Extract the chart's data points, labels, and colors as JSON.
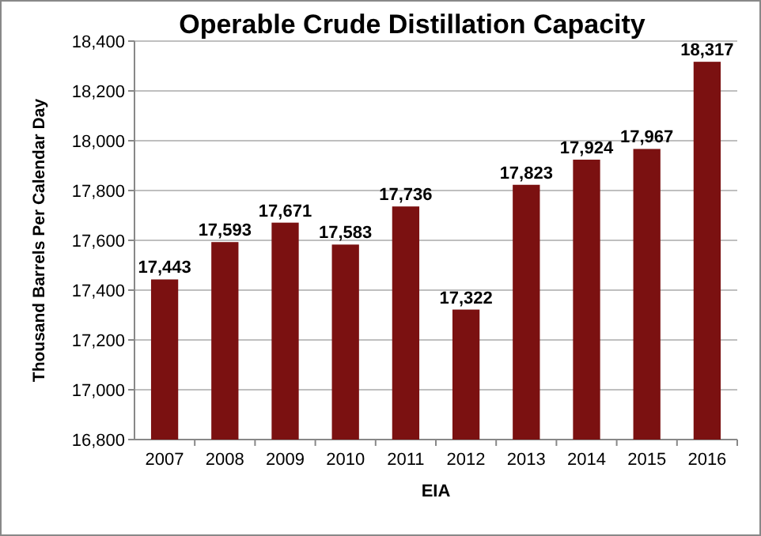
{
  "chart_data": {
    "type": "bar",
    "title": "Operable  Crude  Distillation  Capacity",
    "ylabel": "Thousand  Barrels  Per Calendar Day",
    "categories": [
      "2007",
      "2008",
      "2009",
      "2010",
      "2011",
      "2012",
      "2013",
      "2014",
      "2015",
      "2016"
    ],
    "values": [
      17443,
      17593,
      17671,
      17583,
      17736,
      17322,
      17823,
      17924,
      17967,
      18317
    ],
    "color": "#7b1111",
    "value_labels": [
      "17,443",
      "17,593",
      "17,671",
      "17,583",
      "17,736",
      "17,322",
      "17,823",
      "17,924",
      "17,967",
      "18,317"
    ],
    "ylim": [
      16800,
      18400
    ],
    "yticks": [
      {
        "value": 16800,
        "label": "16,800"
      },
      {
        "value": 17000,
        "label": "17,000"
      },
      {
        "value": 17200,
        "label": "17,200"
      },
      {
        "value": 17400,
        "label": "17,400"
      },
      {
        "value": 17600,
        "label": "17,600"
      },
      {
        "value": 17800,
        "label": "17,800"
      },
      {
        "value": 18000,
        "label": "18,000"
      },
      {
        "value": 18200,
        "label": "18,200"
      },
      {
        "value": 18400,
        "label": "18,400"
      }
    ],
    "grid": "y",
    "annotations": [
      "EIA"
    ]
  }
}
